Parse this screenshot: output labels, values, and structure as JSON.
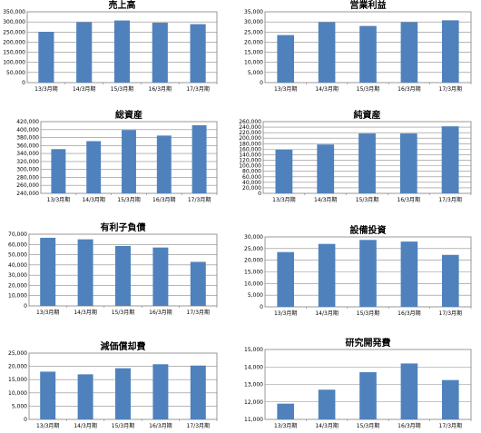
{
  "chart_data": [
    {
      "type": "bar",
      "title": "売上高",
      "categories": [
        "13/3月期",
        "14/3月期",
        "15/3月期",
        "16/3月期",
        "17/3月期"
      ],
      "values": [
        251000,
        298000,
        307000,
        296000,
        289000
      ],
      "ylim": [
        0,
        350000
      ],
      "yticks": [
        "0",
        "50,000",
        "100,000",
        "150,000",
        "200,000",
        "250,000",
        "300,000",
        "350,000"
      ],
      "bar_color": "#4f81bd",
      "grid": true
    },
    {
      "type": "bar",
      "title": "営業利益",
      "categories": [
        "13/3月期",
        "14/3月期",
        "15/3月期",
        "16/3月期",
        "17/3月期"
      ],
      "values": [
        23500,
        29800,
        28000,
        29800,
        30800
      ],
      "ylim": [
        0,
        35000
      ],
      "yticks": [
        "0",
        "5,000",
        "10,000",
        "15,000",
        "20,000",
        "25,000",
        "30,000",
        "35,000"
      ],
      "bar_color": "#4f81bd",
      "grid": true
    },
    {
      "type": "bar",
      "title": "総資産",
      "categories": [
        "13/3月期",
        "14/3月期",
        "15/3月期",
        "16/3月期",
        "17/3月期"
      ],
      "values": [
        351000,
        371000,
        399000,
        385000,
        411000
      ],
      "ylim": [
        240000,
        420000
      ],
      "yticks": [
        "240,000",
        "260,000",
        "280,000",
        "300,000",
        "320,000",
        "340,000",
        "360,000",
        "380,000",
        "400,000",
        "420,000"
      ],
      "bar_color": "#4f81bd",
      "grid": true
    },
    {
      "type": "bar",
      "title": "純資産",
      "categories": [
        "13/3月期",
        "14/3月期",
        "15/3月期",
        "16/3月期",
        "17/3月期"
      ],
      "values": [
        158000,
        177000,
        217000,
        217000,
        243000
      ],
      "ylim": [
        0,
        260000
      ],
      "yticks": [
        "0",
        "20,000",
        "40,000",
        "60,000",
        "80,000",
        "100,000",
        "120,000",
        "140,000",
        "160,000",
        "180,000",
        "200,000",
        "220,000",
        "240,000",
        "260,000"
      ],
      "bar_color": "#4f81bd",
      "grid": true
    },
    {
      "type": "bar",
      "title": "有利子負債",
      "categories": [
        "13/3月期",
        "14/3月期",
        "15/3月期",
        "16/3月期",
        "17/3月期"
      ],
      "values": [
        66500,
        65000,
        58500,
        57000,
        43000
      ],
      "ylim": [
        0,
        70000
      ],
      "yticks": [
        "0",
        "10,000",
        "20,000",
        "30,000",
        "40,000",
        "50,000",
        "60,000",
        "70,000"
      ],
      "bar_color": "#4f81bd",
      "grid": true
    },
    {
      "type": "bar",
      "title": "設備投資",
      "categories": [
        "13/3月期",
        "14/3月期",
        "15/3月期",
        "16/3月期",
        "17/3月期"
      ],
      "values": [
        23500,
        27000,
        28700,
        28000,
        22300
      ],
      "ylim": [
        0,
        30000
      ],
      "yticks": [
        "0",
        "5,000",
        "10,000",
        "15,000",
        "20,000",
        "25,000",
        "30,000"
      ],
      "bar_color": "#4f81bd",
      "grid": true
    },
    {
      "type": "bar",
      "title": "減価償却費",
      "categories": [
        "13/3月期",
        "14/3月期",
        "15/3月期",
        "16/3月期",
        "17/3月期"
      ],
      "values": [
        18000,
        17000,
        19300,
        20800,
        20300
      ],
      "ylim": [
        0,
        25000
      ],
      "yticks": [
        "0",
        "5,000",
        "10,000",
        "15,000",
        "20,000",
        "25,000"
      ],
      "bar_color": "#4f81bd",
      "grid": true
    },
    {
      "type": "bar",
      "title": "研究開発費",
      "categories": [
        "13/3月期",
        "14/3月期",
        "15/3月期",
        "16/3月期",
        "17/3月期"
      ],
      "values": [
        11900,
        12700,
        13700,
        14200,
        13250
      ],
      "ylim": [
        11000,
        15000
      ],
      "yticks": [
        "11,000",
        "12,000",
        "13,000",
        "14,000",
        "15,000"
      ],
      "bar_color": "#4f81bd",
      "grid": true
    }
  ]
}
